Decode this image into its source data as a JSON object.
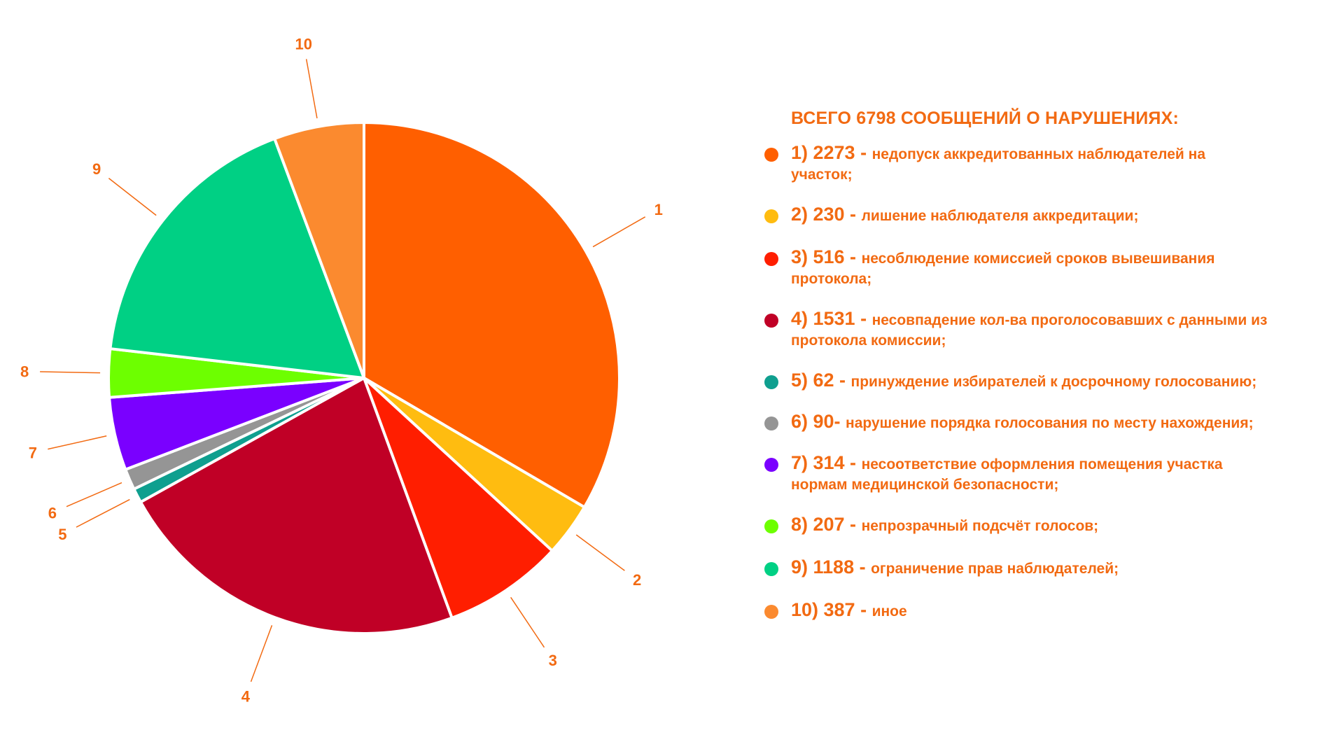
{
  "chart_data": {
    "type": "pie",
    "total_title": "ВСЕГО 6798 СООБЩЕНИЙ О НАРУШЕНИЯХ:",
    "slices": [
      {
        "label": "1",
        "value": 2273,
        "color": "#ff5f00",
        "legend_num": "1) 2273 - ",
        "legend_text": "недопуск аккредитованных  наблюдателей на участок;"
      },
      {
        "label": "2",
        "value": 230,
        "color": "#ffbc10",
        "legend_num": "2) 230 - ",
        "legend_text": "лишение наблюдателя аккредитации;"
      },
      {
        "label": "3",
        "value": 516,
        "color": "#ff1e00",
        "legend_num": "3) 516 - ",
        "legend_text": "несоблюдение комиссией сроков вывешивания протокола;"
      },
      {
        "label": "4",
        "value": 1531,
        "color": "#c00026",
        "legend_num": "4) 1531 - ",
        "legend_text": "несовпадение кол-ва проголосовавших с данными из протокола комиссии;"
      },
      {
        "label": "5",
        "value": 62,
        "color": "#0f9f8f",
        "legend_num": "5) 62 - ",
        "legend_text": "принуждение избирателей к досрочному голосованию;"
      },
      {
        "label": "6",
        "value": 90,
        "color": "#959595",
        "legend_num": "6) 90- ",
        "legend_text": "нарушение порядка голосования по месту нахождения;"
      },
      {
        "label": "7",
        "value": 314,
        "color": "#7a00ff",
        "legend_num": "7) 314 - ",
        "legend_text": "несоответствие оформления помещения участка нормам медицинской безопасности;"
      },
      {
        "label": "8",
        "value": 207,
        "color": "#6dff00",
        "legend_num": "8) 207 - ",
        "legend_text": "непрозрачный подсчёт голосов;"
      },
      {
        "label": "9",
        "value": 1188,
        "color": "#00d084",
        "legend_num": "9) 1188 - ",
        "legend_text": "ограничение прав наблюдателей;"
      },
      {
        "label": "10",
        "value": 387,
        "color": "#fb8a2f",
        "legend_num": "10) 387 - ",
        "legend_text": "иное"
      }
    ]
  }
}
